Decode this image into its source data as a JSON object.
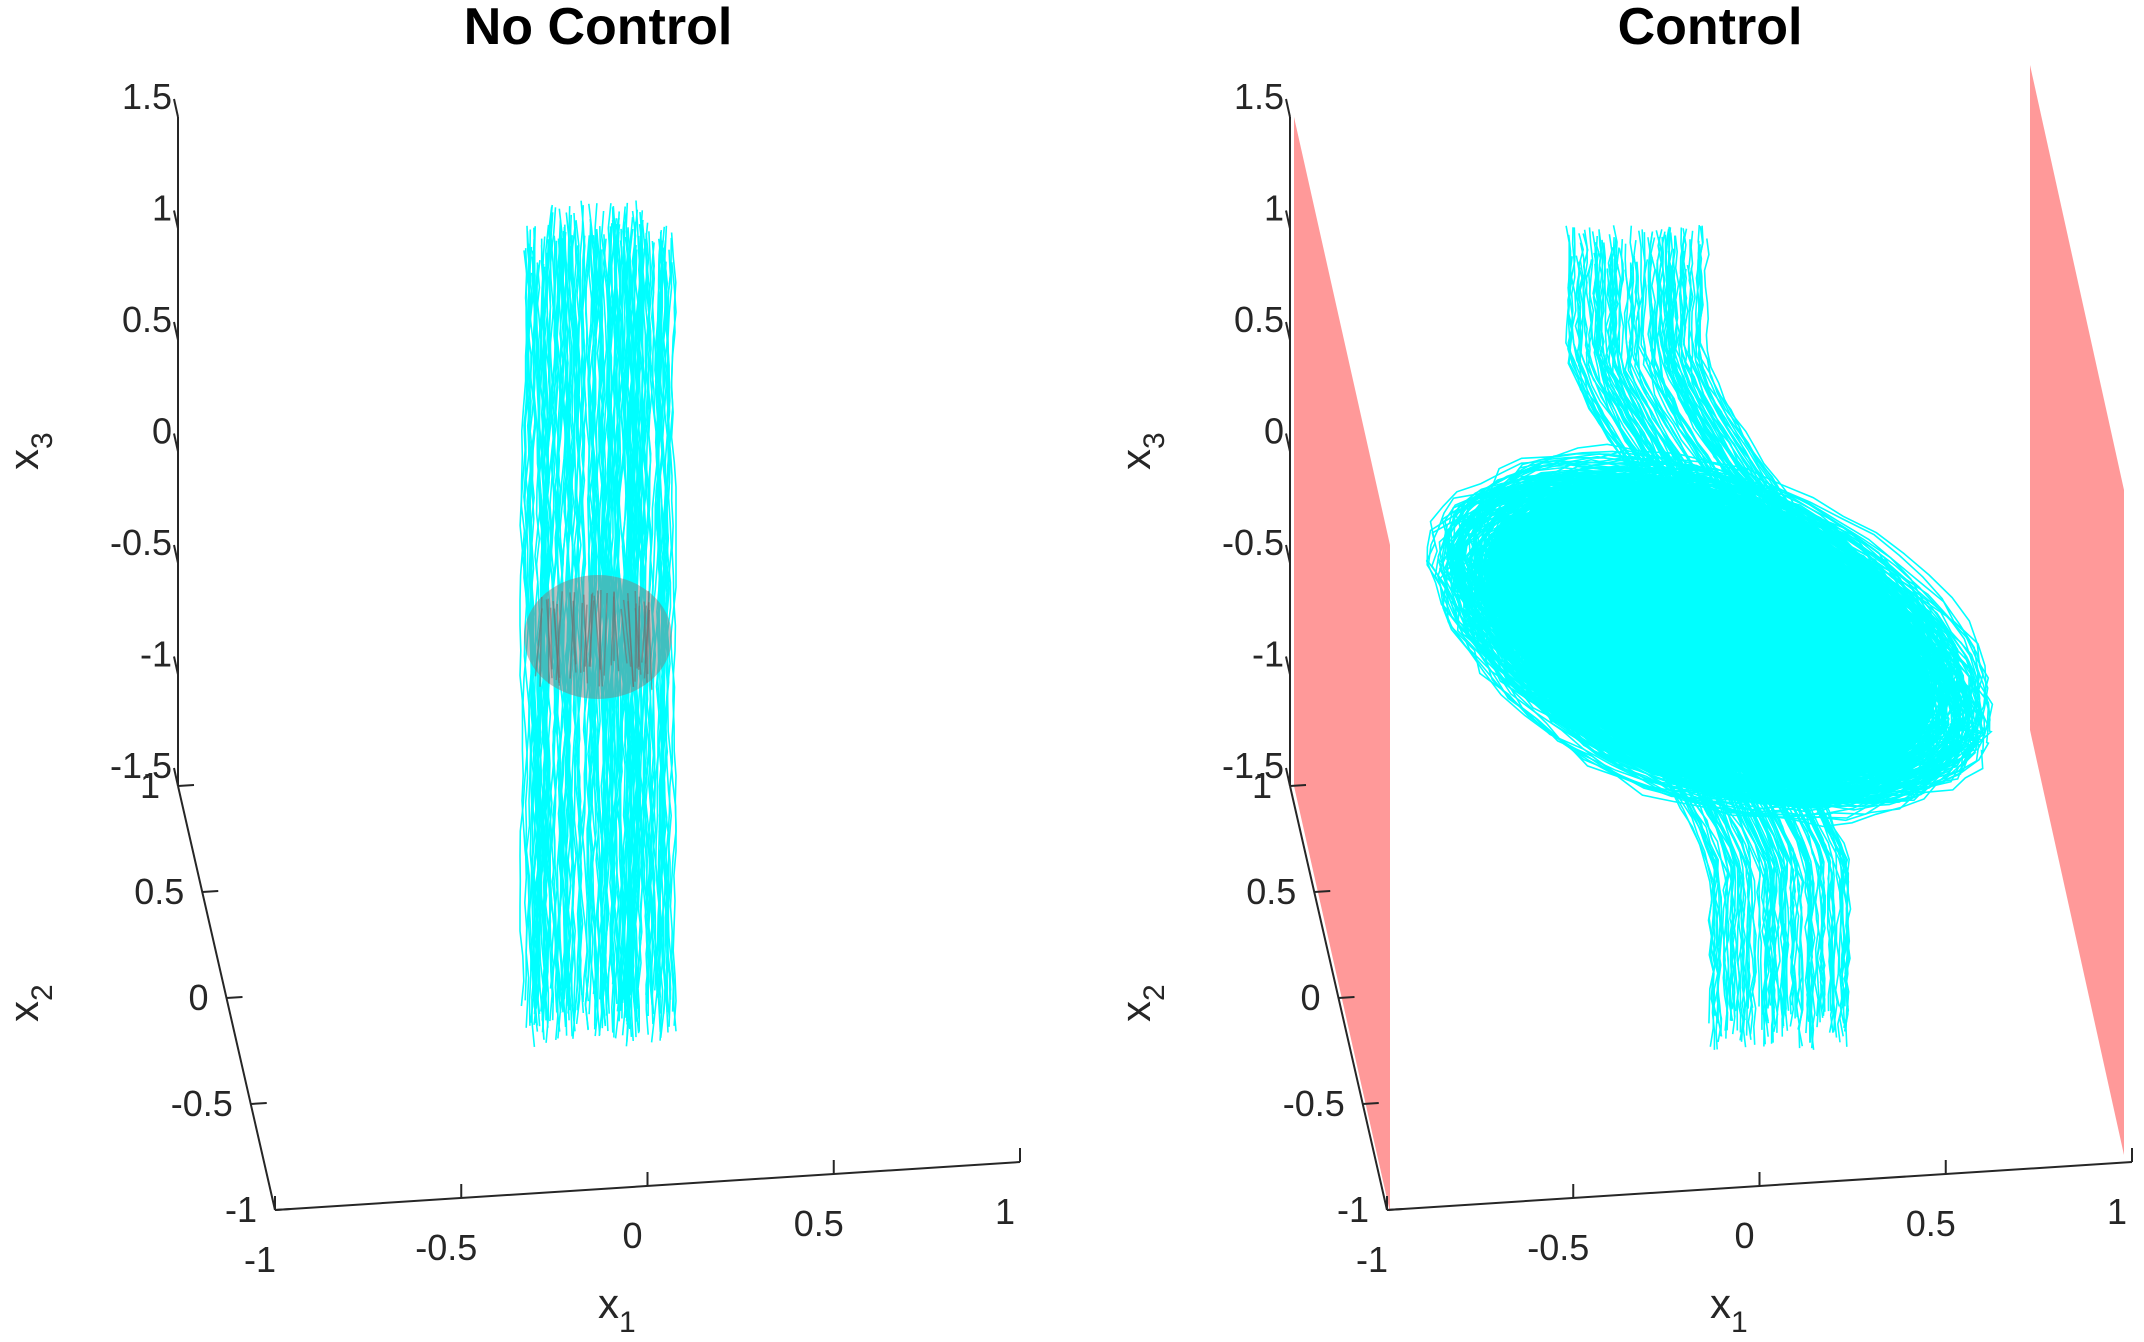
{
  "chart_data": [
    {
      "type": "line",
      "title": "No Control",
      "xlabel": "x",
      "xlabel_sub": "1",
      "ylabel": "x",
      "ylabel_sub": "2",
      "zlabel": "x",
      "zlabel_sub": "3",
      "xlim": [
        -1,
        1
      ],
      "ylim": [
        -1,
        1
      ],
      "zlim": [
        -1.5,
        1.5
      ],
      "x_ticks": [
        "-1",
        "-0.5",
        "0",
        "0.5",
        "1"
      ],
      "y_ticks": [
        "-1",
        "-0.5",
        "0",
        "0.5",
        "1"
      ],
      "z_ticks": [
        "-1.5",
        "-1",
        "-0.5",
        "0",
        "0.5",
        "1",
        "1.5"
      ],
      "series": [
        {
          "description": "trajectories",
          "color": "#00ffff",
          "x_range": [
            -0.3,
            0.1
          ],
          "z_range": [
            -1.5,
            0.75
          ],
          "shape": "vertical-column"
        },
        {
          "description": "target region",
          "color": "#808080",
          "center": [
            -0.1,
            -1.0
          ],
          "shape": "ellipsoid"
        }
      ],
      "grid": false,
      "barriers": false
    },
    {
      "type": "line",
      "title": "Control",
      "xlabel": "x",
      "xlabel_sub": "1",
      "ylabel": "x",
      "ylabel_sub": "2",
      "zlabel": "x",
      "zlabel_sub": "3",
      "xlim": [
        -1,
        1
      ],
      "ylim": [
        -1,
        1
      ],
      "zlim": [
        -1.5,
        1.5
      ],
      "x_ticks": [
        "-1",
        "-0.5",
        "0",
        "0.5",
        "1"
      ],
      "y_ticks": [
        "-1",
        "-0.5",
        "0",
        "0.5",
        "1"
      ],
      "z_ticks": [
        "-1.5",
        "-1",
        "-0.5",
        "0",
        "0.5",
        "1",
        "1.5"
      ],
      "series": [
        {
          "description": "trajectories",
          "color": "#00ffff",
          "shape": "s-curve-with-limit-cycle",
          "cycle_center": [
            -0.1,
            -1.0
          ]
        },
        {
          "description": "barrier planes",
          "color": "#ff9999",
          "x_positions": [
            -1,
            0.75
          ]
        }
      ],
      "grid": false,
      "barriers": true
    }
  ]
}
